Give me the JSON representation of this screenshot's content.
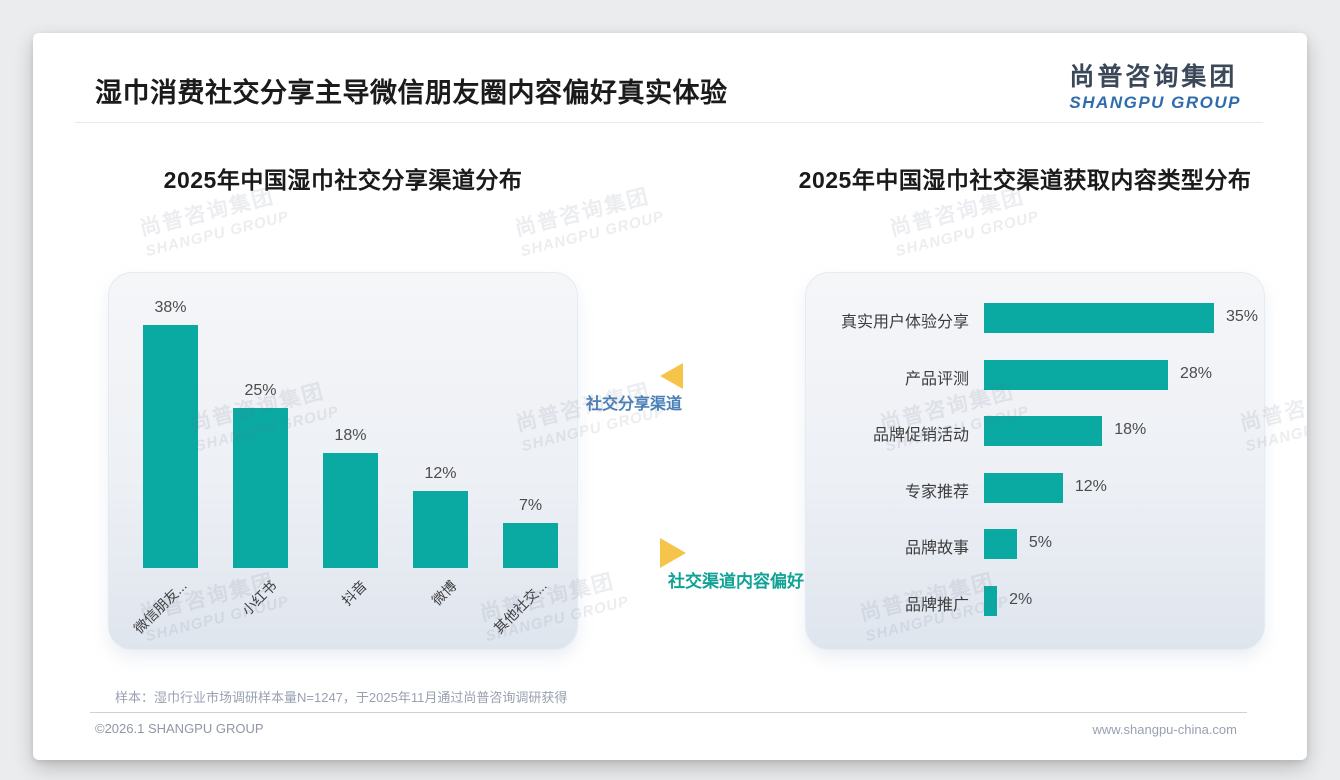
{
  "page": {
    "title": "湿巾消费社交分享主导微信朋友圈内容偏好真实体验",
    "logo": {
      "cn": "尚普咨询集团",
      "en": "SHANGPU GROUP"
    },
    "watermark": {
      "cn": "尚普咨询集团",
      "en": "SHANGPU GROUP"
    },
    "connector": {
      "left_label": "社交分享渠道",
      "right_label": "社交渠道内容偏好"
    },
    "footer": {
      "sample_note": "样本：湿巾行业市场调研样本量N=1247，于2025年11月通过尚普咨询调研获得",
      "copyright": "©2026.1 SHANGPU GROUP",
      "website": "www.shangpu-china.com"
    }
  },
  "colors": {
    "bar_teal": "#0aa9a1",
    "triangle_yellow": "#f6c44a",
    "connector_blue": "#4a80b8",
    "connector_teal": "#0fa295",
    "value_text": "#4c4c4c",
    "category_text": "#3c3c3c"
  },
  "chart_data": [
    {
      "type": "bar",
      "orientation": "vertical",
      "title": "2025年中国湿巾社交分享渠道分布",
      "categories": [
        "微信朋友...",
        "小红书",
        "抖音",
        "微博",
        "其他社交..."
      ],
      "values": [
        38,
        25,
        18,
        12,
        7
      ],
      "value_labels": [
        "38%",
        "25%",
        "18%",
        "12%",
        "7%"
      ],
      "unit": "%",
      "ylim": [
        0,
        40
      ],
      "grid": false,
      "legend": "none"
    },
    {
      "type": "bar",
      "orientation": "horizontal",
      "title": "2025年中国湿巾社交渠道获取内容类型分布",
      "categories": [
        "真实用户体验分享",
        "产品评测",
        "品牌促销活动",
        "专家推荐",
        "品牌故事",
        "品牌推广"
      ],
      "values": [
        35,
        28,
        18,
        12,
        5,
        2
      ],
      "value_labels": [
        "35%",
        "28%",
        "18%",
        "12%",
        "5%",
        "2%"
      ],
      "unit": "%",
      "xlim": [
        0,
        38
      ],
      "grid": false,
      "legend": "none"
    }
  ]
}
